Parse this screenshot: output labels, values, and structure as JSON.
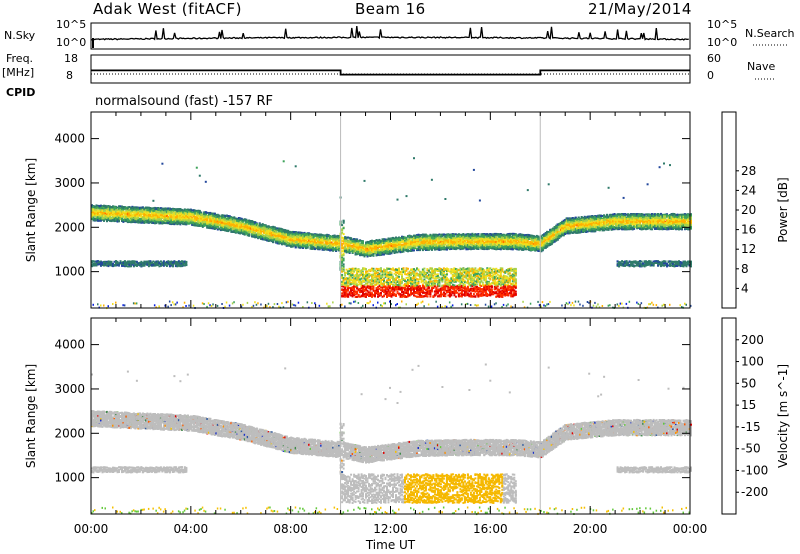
{
  "header": {
    "title": "Adak West (fitACF)",
    "beam": "Beam 16",
    "date": "21/May/2014"
  },
  "noise_panel": {
    "left_label": "N.Sky",
    "right_label": "N.Search",
    "ytick_top": "10^5",
    "ytick_bottom": "10^0",
    "rtick_top": "10^5",
    "rtick_bottom": "10^0"
  },
  "freq_panel": {
    "left_label_top": "Freq.",
    "left_label_bottom": "[MHz]",
    "ytick_top": "18",
    "ytick_bottom": "8",
    "right_label": "Nave",
    "rtick_top": "60",
    "rtick_bottom": "0",
    "cpid_label": "CPID",
    "mode_text": "normalsound (fast) -157 RF"
  },
  "chart_data": [
    {
      "type": "heatmap",
      "panel": "power",
      "ylabel": "Slant Range [km]",
      "ylim": [
        180,
        4600
      ],
      "yticks": [
        1000,
        2000,
        3000,
        4000
      ],
      "xlim": [
        0,
        24
      ],
      "colorbar": {
        "label": "Power [dB]",
        "ticks": [
          "4",
          "8",
          "12",
          "16",
          "20",
          "24",
          "28"
        ],
        "colors": [
          "#0a22e0",
          "#23489c",
          "#2f7a6a",
          "#3ea35a",
          "#a8d24a",
          "#f0e020",
          "#ffb000",
          "#ff7000",
          "#ff3000",
          "#e00000"
        ]
      },
      "bands": [
        {
          "name": "main",
          "range_km": [
            [
              0,
              2350
            ],
            [
              4,
              2250
            ],
            [
              6,
              2050
            ],
            [
              8,
              1750
            ],
            [
              10,
              1650
            ],
            [
              11,
              1530
            ],
            [
              13,
              1680
            ],
            [
              15,
              1700
            ],
            [
              17,
              1700
            ],
            [
              18,
              1650
            ],
            [
              19,
              2050
            ],
            [
              21,
              2150
            ],
            [
              24,
              2150
            ]
          ],
          "power_db": 14
        },
        {
          "name": "low",
          "t": [
            0,
            3.8
          ],
          "range_km": 1200,
          "power_db": 6
        },
        {
          "name": "afternoon",
          "t": [
            10,
            17
          ],
          "range_km": 650,
          "power_db": 24
        },
        {
          "name": "evening",
          "t": [
            21,
            24
          ],
          "range_km": 1200,
          "power_db": 6
        }
      ]
    },
    {
      "type": "heatmap",
      "panel": "velocity",
      "xlabel": "Time UT",
      "ylabel": "Slant Range [km]",
      "ylim": [
        180,
        4600
      ],
      "yticks": [
        1000,
        2000,
        3000,
        4000
      ],
      "xlim": [
        0,
        24
      ],
      "xticks": [
        "00:00",
        "04:00",
        "08:00",
        "12:00",
        "16:00",
        "20:00",
        "00:00"
      ],
      "colorbar": {
        "label": "Velocity [m s^-1]",
        "ticks": [
          "200",
          "100",
          "50",
          "15",
          "-15",
          "-50",
          "-100",
          "-200"
        ],
        "colors": [
          "#1a30c8",
          "#2f5aa0",
          "#3f8a4a",
          "#62c83a",
          "#bdbdbd",
          "#f5c000",
          "#ff9000",
          "#ff5a00",
          "#e00000"
        ]
      },
      "bands": [
        {
          "name": "main",
          "velocity_ms": 0
        },
        {
          "name": "afternoon",
          "t": [
            12.5,
            16.5
          ],
          "range_km": 800,
          "velocity_ms": -40
        }
      ]
    }
  ]
}
